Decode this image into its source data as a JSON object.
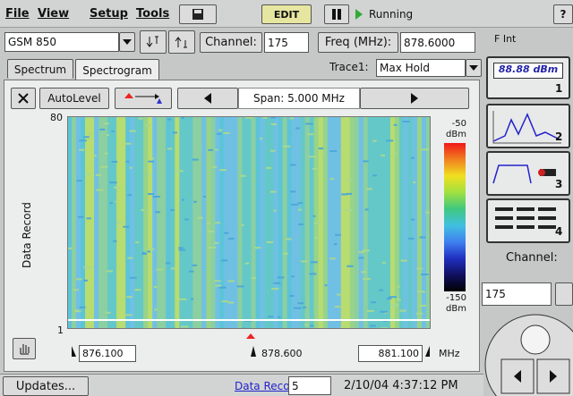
{
  "menu": [
    "File",
    "View",
    "Setup",
    "Tools"
  ],
  "toolbar": {
    "edit": "EDIT",
    "status": "Running",
    "help": "?"
  },
  "controls": {
    "standard": "GSM 850",
    "channel_label": "Channel:",
    "channel": "175",
    "freq_label": "Freq (MHz):",
    "freq": "878.6000",
    "f_int": "F Int"
  },
  "tabs": [
    "Spectrum",
    "Spectrogram"
  ],
  "trace": {
    "label": "Trace1:",
    "mode": "Max Hold"
  },
  "side": {
    "readout": "88.88 dBm",
    "buttons": [
      "1",
      "2",
      "3",
      "4"
    ],
    "channel_label": "Channel:",
    "channel": "175"
  },
  "plot_toolbar": {
    "autolevel": "AutoLevel",
    "span": "Span: 5.000 MHz"
  },
  "plot": {
    "y_label": "Data Record",
    "y_top": "80",
    "y_bottom": "1",
    "scale_top": "-50",
    "scale_top_unit": "dBm",
    "scale_bottom": "-150",
    "scale_bottom_unit": "dBm",
    "x_left": "876.100",
    "x_center": "878.600",
    "x_right": "881.100",
    "x_unit": "MHz"
  },
  "status": {
    "updates": "Updates...",
    "record_label": "Data Record:",
    "record": "5",
    "datetime": "2/10/04 4:37:12 PM"
  }
}
